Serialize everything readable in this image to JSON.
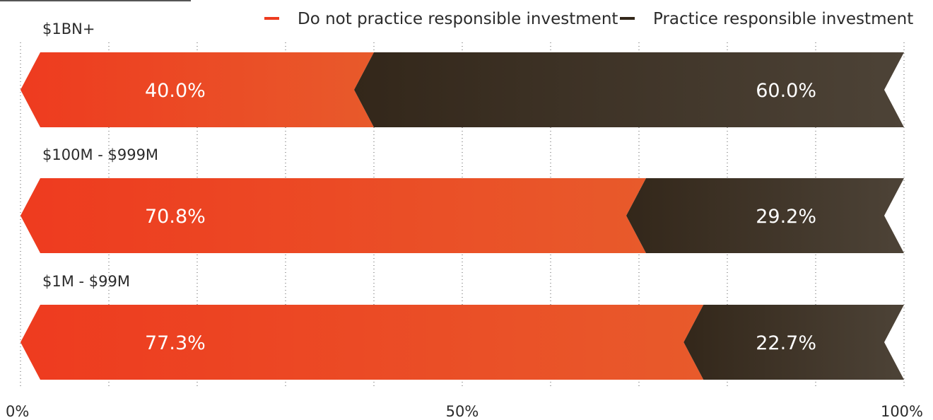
{
  "chart_data": {
    "type": "bar",
    "orientation": "horizontal",
    "stacked": true,
    "percent": true,
    "categories": [
      "$1BN+",
      "$100M - $999M",
      "$1M - $99M"
    ],
    "series": [
      {
        "name": "Do not practice responsible investment",
        "values": [
          40.0,
          70.8,
          77.3
        ],
        "value_labels": [
          "40.0%",
          "70.8%",
          "77.3%"
        ],
        "color": "#ee3b1f",
        "color_end": "#e85a2b"
      },
      {
        "name": "Practice responsible investment",
        "values": [
          60.0,
          29.2,
          22.7
        ],
        "value_labels": [
          "60.0%",
          "29.2%",
          "22.7%"
        ],
        "color": "#33271a",
        "color_end": "#4d4337"
      }
    ],
    "xlim": [
      0,
      100
    ],
    "x_ticks": [
      "0%",
      "50%",
      "100%"
    ],
    "grid": "vertical dotted",
    "legend": "top-right"
  }
}
